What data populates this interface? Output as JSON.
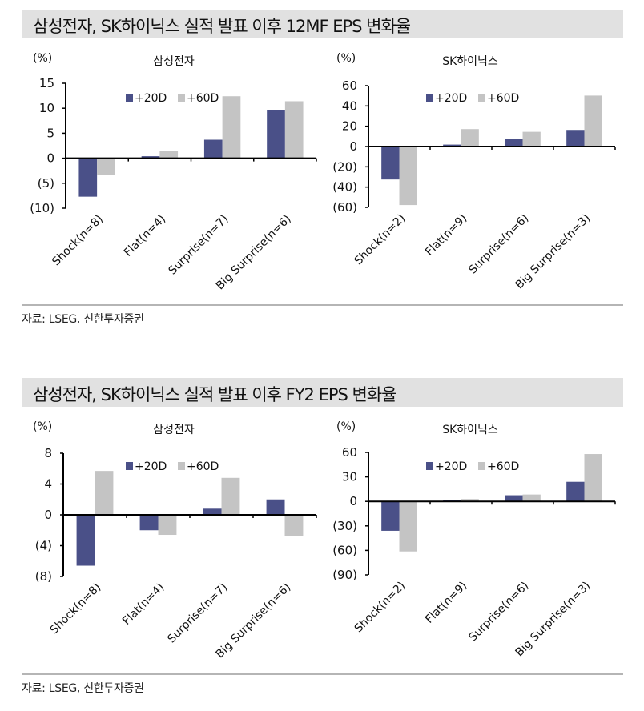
{
  "sections": [
    {
      "title": "삼성전자, SK하이닉스 실적 발표 이후 12MF EPS 변화율",
      "source": "자료: LSEG,  신한투자증권"
    },
    {
      "title": "삼성전자, SK하이닉스 실적 발표 이후 FY2 EPS 변화율",
      "source": "자료: LSEG,  신한투자증권"
    }
  ],
  "colors": {
    "series_20d": "#4a5088",
    "series_60d": "#c4c4c4",
    "title_bg": "#e1e1e1",
    "axis": "#000000"
  },
  "chart_data": [
    {
      "type": "bar",
      "title": "삼성전자",
      "section": "12MF EPS 변화율",
      "ylabel": "(%)",
      "categories": [
        "Shock(n=8)",
        "Flat(n=4)",
        "Surprise(n=7)",
        "Big Surprise(n=6)"
      ],
      "series": [
        {
          "name": "+20D",
          "values": [
            -7.7,
            0.4,
            3.7,
            9.7
          ]
        },
        {
          "name": "+60D",
          "values": [
            -3.3,
            1.4,
            12.4,
            11.4
          ]
        }
      ],
      "ylim": [
        -10,
        15
      ],
      "yticks": [
        15,
        10,
        5,
        0,
        -5,
        -10
      ],
      "ytick_labels": [
        "15",
        "10",
        "5",
        "0",
        "(5)",
        "(10)"
      ],
      "legend_position": "top-center",
      "grid": false
    },
    {
      "type": "bar",
      "title": "SK하이닉스",
      "section": "12MF EPS 변화율",
      "ylabel": "(%)",
      "categories": [
        "Shock(n=2)",
        "Flat(n=9)",
        "Surprise(n=6)",
        "Big Surprise(n=3)"
      ],
      "series": [
        {
          "name": "+20D",
          "values": [
            -32.5,
            1.9,
            7.4,
            16.4
          ]
        },
        {
          "name": "+60D",
          "values": [
            -57.7,
            17.2,
            14.5,
            50.2
          ]
        }
      ],
      "ylim": [
        -60,
        60
      ],
      "yticks": [
        60,
        40,
        20,
        0,
        -20,
        -40,
        -60
      ],
      "ytick_labels": [
        "60",
        "40",
        "20",
        "0",
        "(20)",
        "(40)",
        "(60)"
      ],
      "legend_position": "top-center",
      "grid": false
    },
    {
      "type": "bar",
      "title": "삼성전자",
      "section": "FY2 EPS 변화율",
      "ylabel": "(%)",
      "categories": [
        "Shock(n=8)",
        "Flat(n=4)",
        "Surprise(n=7)",
        "Big Surprise(n=6)"
      ],
      "series": [
        {
          "name": "+20D",
          "values": [
            -6.6,
            -2.0,
            0.8,
            2.0
          ]
        },
        {
          "name": "+60D",
          "values": [
            5.7,
            -2.6,
            4.8,
            -2.8
          ]
        }
      ],
      "ylim": [
        -8,
        8
      ],
      "yticks": [
        8,
        4,
        0,
        -4,
        -8
      ],
      "ytick_labels": [
        "8",
        "4",
        "0",
        "(4)",
        "(8)"
      ],
      "legend_position": "top-center",
      "grid": false
    },
    {
      "type": "bar",
      "title": "SK하이닉스",
      "section": "FY2 EPS 변화율",
      "ylabel": "(%)",
      "categories": [
        "Shock(n=2)",
        "Flat(n=9)",
        "Surprise(n=6)",
        "Big Surprise(n=3)"
      ],
      "series": [
        {
          "name": "+20D",
          "values": [
            -36.0,
            1.9,
            7.5,
            24.0
          ]
        },
        {
          "name": "+60D",
          "values": [
            -61.3,
            2.9,
            8.4,
            58.0
          ]
        }
      ],
      "ylim": [
        -90,
        60
      ],
      "yticks": [
        60,
        30,
        0,
        -30,
        -60,
        -90
      ],
      "ytick_labels": [
        "60",
        "30",
        "0",
        "(30)",
        "(60)",
        "(90)"
      ],
      "legend_position": "top-center",
      "grid": false
    }
  ]
}
